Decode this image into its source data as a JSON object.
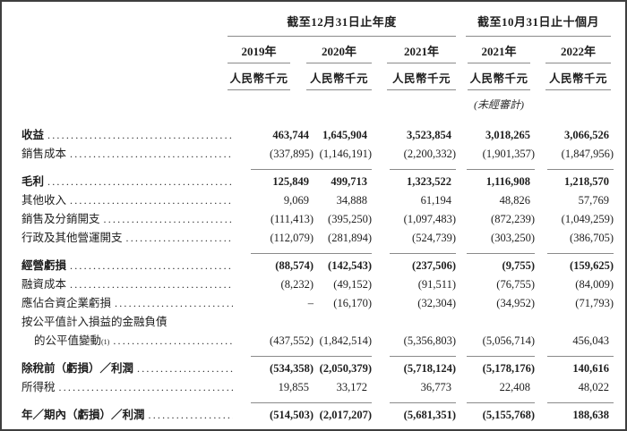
{
  "colors": {
    "background": "#ffffff",
    "text": "#1e1e1e",
    "rule_gray": "#8a8a8a",
    "border": "#3e3e3e"
  },
  "table": {
    "groups": [
      {
        "title": "截至12月31日止年度"
      },
      {
        "title": "截至10月31日止十個月"
      }
    ],
    "columns": [
      {
        "year": "2019年",
        "unit": "人民幣千元",
        "note": ""
      },
      {
        "year": "2020年",
        "unit": "人民幣千元",
        "note": ""
      },
      {
        "year": "2021年",
        "unit": "人民幣千元",
        "note": ""
      },
      {
        "year": "2021年",
        "unit": "人民幣千元",
        "note": "(未經審計)"
      },
      {
        "year": "2022年",
        "unit": "人民幣千元",
        "note": ""
      }
    ],
    "rows": [
      {
        "label": "收益",
        "bold": true,
        "rule_below": false,
        "values": [
          "463,744",
          "1,645,904",
          "3,523,854",
          "3,018,265",
          "3,066,526"
        ]
      },
      {
        "label": "銷售成本",
        "bold": false,
        "rule_below": true,
        "values": [
          "(337,895)",
          "(1,146,191)",
          "(2,200,332)",
          "(1,901,357)",
          "(1,847,956)"
        ]
      },
      {
        "label": "毛利",
        "bold": true,
        "rule_below": false,
        "values": [
          "125,849",
          "499,713",
          "1,323,522",
          "1,116,908",
          "1,218,570"
        ]
      },
      {
        "label": "其他收入",
        "bold": false,
        "rule_below": false,
        "values": [
          "9,069",
          "34,888",
          "61,194",
          "48,826",
          "57,769"
        ]
      },
      {
        "label": "銷售及分銷開支",
        "bold": false,
        "rule_below": false,
        "values": [
          "(111,413)",
          "(395,250)",
          "(1,097,483)",
          "(872,239)",
          "(1,049,259)"
        ]
      },
      {
        "label": "行政及其他營運開支",
        "bold": false,
        "rule_below": true,
        "values": [
          "(112,079)",
          "(281,894)",
          "(524,739)",
          "(303,250)",
          "(386,705)"
        ]
      },
      {
        "label": "經營虧損",
        "bold": true,
        "rule_below": false,
        "values": [
          "(88,574)",
          "(142,543)",
          "(237,506)",
          "(9,755)",
          "(159,625)"
        ]
      },
      {
        "label": "融資成本",
        "bold": false,
        "rule_below": false,
        "values": [
          "(8,232)",
          "(49,152)",
          "(91,511)",
          "(76,755)",
          "(84,009)"
        ]
      },
      {
        "label": "應佔合資企業虧損",
        "bold": false,
        "rule_below": false,
        "values": [
          "–",
          "(16,170)",
          "(32,304)",
          "(34,952)",
          "(71,793)"
        ]
      },
      {
        "label": "按公平值計入損益的金融負債",
        "label2": "的公平值變動",
        "sup": "(1)",
        "bold": false,
        "rule_below": true,
        "values": [
          "(437,552)",
          "(1,842,514)",
          "(5,356,803)",
          "(5,056,714)",
          "456,043"
        ]
      },
      {
        "label": "除稅前（虧損）／利潤",
        "bold": true,
        "rule_below": false,
        "values": [
          "(534,358)",
          "(2,050,379)",
          "(5,718,124)",
          "(5,178,176)",
          "140,616"
        ]
      },
      {
        "label": "所得稅",
        "bold": false,
        "rule_below": true,
        "values": [
          "19,855",
          "33,172",
          "36,773",
          "22,408",
          "48,022"
        ]
      },
      {
        "label": "年／期內（虧損）／利潤",
        "bold": true,
        "rule_below": false,
        "values": [
          "(514,503)",
          "(2,017,207)",
          "(5,681,351)",
          "(5,155,768)",
          "188,638"
        ]
      }
    ]
  }
}
